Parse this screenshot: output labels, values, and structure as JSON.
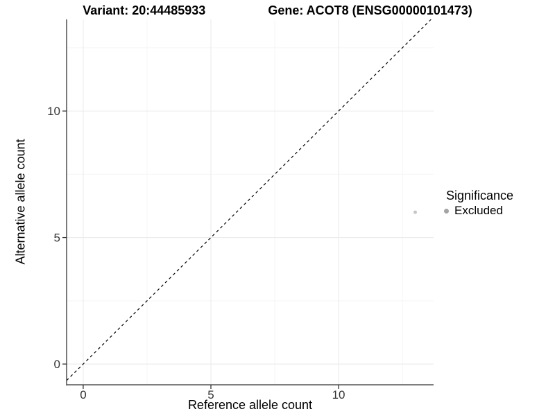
{
  "header": {
    "variant_title": "Variant: 20:44485933",
    "gene_title": "Gene: ACOT8 (ENSG00000101473)"
  },
  "chart_data": {
    "type": "scatter",
    "title": "Variant: 20:44485933    Gene: ACOT8 (ENSG00000101473)",
    "xlabel": "Reference allele count",
    "ylabel": "Alternative allele count",
    "xlim": [
      -0.65,
      13.72
    ],
    "ylim": [
      -0.82,
      13.62
    ],
    "x_major_ticks": [
      0,
      5,
      10
    ],
    "y_major_ticks": [
      0,
      5,
      10
    ],
    "x_minor_ticks": [
      2.5,
      7.5,
      12.5
    ],
    "y_minor_ticks": [
      2.5,
      7.5,
      12.5
    ],
    "grid": true,
    "identity_line": {
      "slope": 1,
      "intercept": 0,
      "style": "dashed",
      "color": "#000000"
    },
    "points": [
      {
        "x": 13,
        "y": 6,
        "series": "Excluded",
        "color": "#c6c6c6",
        "radius": 2.5
      }
    ],
    "legend": {
      "position": "right",
      "title": "Significance",
      "entries": [
        {
          "label": "Excluded",
          "color": "#a4a4a4"
        }
      ]
    }
  },
  "colors": {
    "background": "#ffffff",
    "grid_major": "#ebebeb",
    "grid_minor": "#f5f5f5",
    "axis_line": "#333333",
    "tick_label": "#333333",
    "title_text": "#000000",
    "point": "#c6c6c6",
    "legend_key": "#a4a4a4"
  }
}
